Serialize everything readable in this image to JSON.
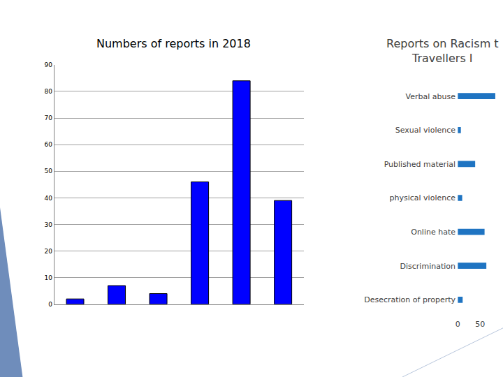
{
  "chart_data": [
    {
      "type": "bar",
      "title": "Numbers of reports in 2018",
      "categories": [
        null,
        null,
        null,
        null,
        null,
        null
      ],
      "values": [
        2,
        7,
        4,
        46,
        84,
        39
      ],
      "color": "#0000ff",
      "ylim": [
        0,
        90
      ],
      "yticks": [
        0,
        10,
        20,
        30,
        40,
        50,
        60,
        70,
        80,
        90
      ],
      "grid": true
    },
    {
      "type": "bar",
      "title": "Reports on Racism t\nTravellers I",
      "orientation": "horizontal",
      "categories": [
        "Verbal abuse",
        "Sexual violence",
        "Published material",
        "physical violence",
        "Online hate",
        "Discrimination",
        "Desecration of property"
      ],
      "values": [
        84,
        7,
        39,
        10,
        60,
        64,
        11
      ],
      "color": "#1f74c2",
      "xlim": [
        0,
        90
      ],
      "xticks": [
        0,
        50
      ],
      "grid": false
    }
  ]
}
